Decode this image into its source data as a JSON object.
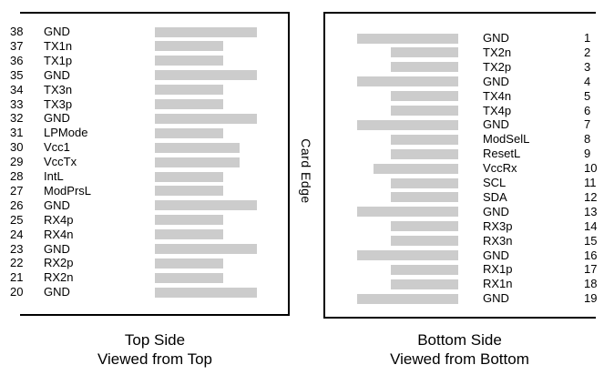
{
  "diagram": {
    "card_edge_label": "Card Edge",
    "bar_color": "#cccccc",
    "line_color": "#000000",
    "top_side": {
      "caption_line1": "Top Side",
      "caption_line2": "Viewed from Top",
      "pins": [
        {
          "number": "38",
          "name": "GND",
          "type": "gnd"
        },
        {
          "number": "37",
          "name": "TX1n",
          "type": "signal"
        },
        {
          "number": "36",
          "name": "TX1p",
          "type": "signal"
        },
        {
          "number": "35",
          "name": "GND",
          "type": "gnd"
        },
        {
          "number": "34",
          "name": "TX3n",
          "type": "signal"
        },
        {
          "number": "33",
          "name": "TX3p",
          "type": "signal"
        },
        {
          "number": "32",
          "name": "GND",
          "type": "gnd"
        },
        {
          "number": "31",
          "name": "LPMode",
          "type": "signal"
        },
        {
          "number": "30",
          "name": "Vcc1",
          "type": "vcc"
        },
        {
          "number": "29",
          "name": "VccTx",
          "type": "vcc"
        },
        {
          "number": "28",
          "name": "IntL",
          "type": "signal"
        },
        {
          "number": "27",
          "name": "ModPrsL",
          "type": "signal"
        },
        {
          "number": "26",
          "name": "GND",
          "type": "gnd"
        },
        {
          "number": "25",
          "name": "RX4p",
          "type": "signal"
        },
        {
          "number": "24",
          "name": "RX4n",
          "type": "signal"
        },
        {
          "number": "23",
          "name": "GND",
          "type": "gnd"
        },
        {
          "number": "22",
          "name": "RX2p",
          "type": "signal"
        },
        {
          "number": "21",
          "name": "RX2n",
          "type": "signal"
        },
        {
          "number": "20",
          "name": "GND",
          "type": "gnd"
        }
      ]
    },
    "bottom_side": {
      "caption_line1": "Bottom Side",
      "caption_line2": "Viewed from Bottom",
      "pins": [
        {
          "number": "1",
          "name": "GND",
          "type": "gnd"
        },
        {
          "number": "2",
          "name": "TX2n",
          "type": "signal"
        },
        {
          "number": "3",
          "name": "TX2p",
          "type": "signal"
        },
        {
          "number": "4",
          "name": "GND",
          "type": "gnd"
        },
        {
          "number": "5",
          "name": "TX4n",
          "type": "signal"
        },
        {
          "number": "6",
          "name": "TX4p",
          "type": "signal"
        },
        {
          "number": "7",
          "name": "GND",
          "type": "gnd"
        },
        {
          "number": "8",
          "name": "ModSelL",
          "type": "signal"
        },
        {
          "number": "9",
          "name": "ResetL",
          "type": "signal"
        },
        {
          "number": "10",
          "name": "VccRx",
          "type": "vcc"
        },
        {
          "number": "11",
          "name": "SCL",
          "type": "signal"
        },
        {
          "number": "12",
          "name": "SDA",
          "type": "signal"
        },
        {
          "number": "13",
          "name": "GND",
          "type": "gnd"
        },
        {
          "number": "14",
          "name": "RX3p",
          "type": "signal"
        },
        {
          "number": "15",
          "name": "RX3n",
          "type": "signal"
        },
        {
          "number": "16",
          "name": "GND",
          "type": "gnd"
        },
        {
          "number": "17",
          "name": "RX1p",
          "type": "signal"
        },
        {
          "number": "18",
          "name": "RX1n",
          "type": "signal"
        },
        {
          "number": "19",
          "name": "GND",
          "type": "gnd"
        }
      ]
    }
  }
}
